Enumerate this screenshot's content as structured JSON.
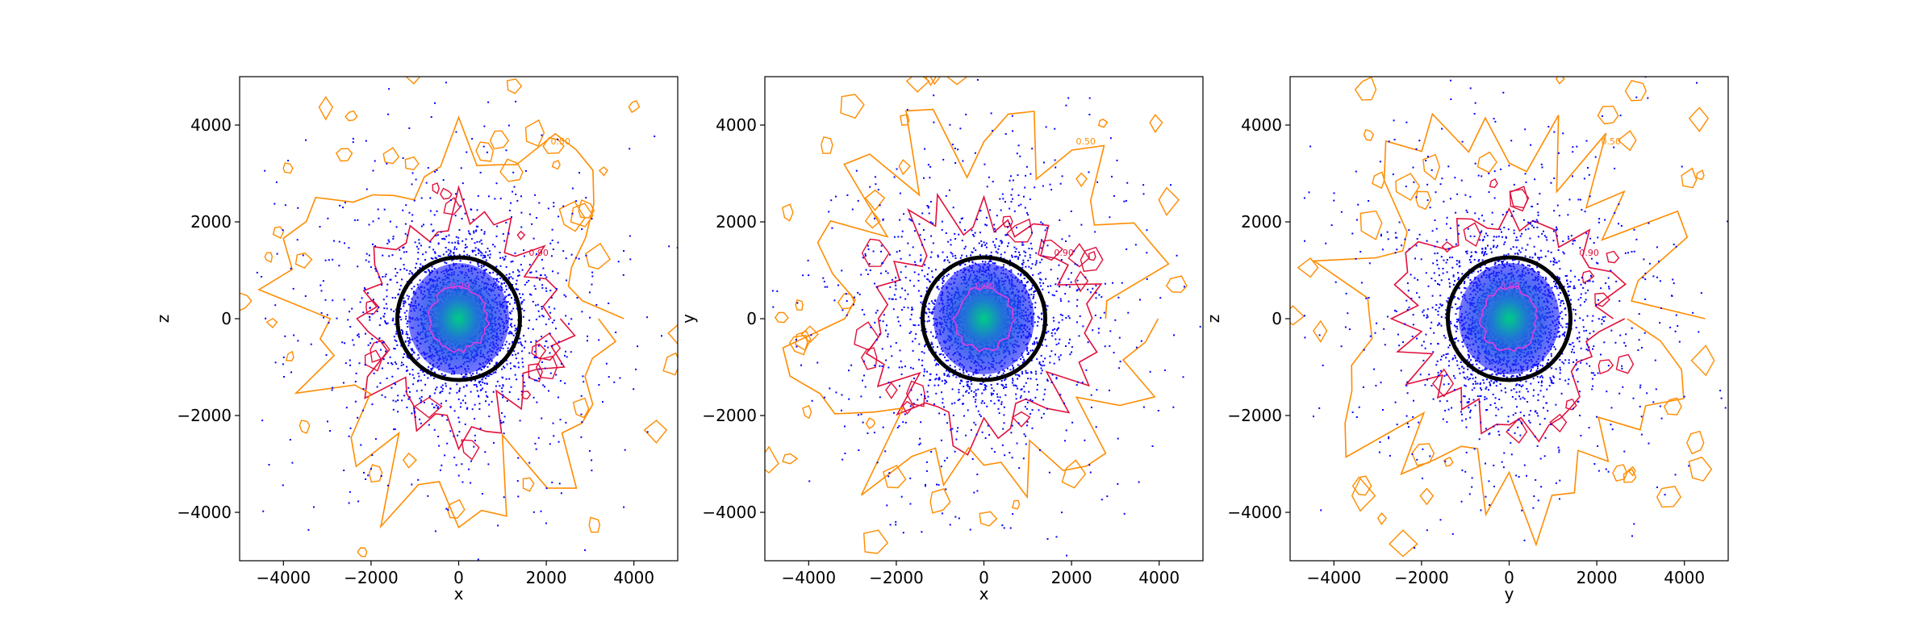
{
  "chart_data": [
    {
      "type": "scatter",
      "panel": "left",
      "xlabel": "x",
      "ylabel": "z",
      "xlim": [
        -5000,
        5000
      ],
      "ylim": [
        -5000,
        5000
      ],
      "xticks": [
        -4000,
        -2000,
        0,
        2000,
        4000
      ],
      "yticks": [
        -4000,
        -2000,
        0,
        2000,
        4000
      ],
      "xtick_labels": [
        "−4000",
        "−2000",
        "0",
        "2000",
        "4000"
      ],
      "ytick_labels": [
        "−4000",
        "−2000",
        "0",
        "2000",
        "4000"
      ],
      "grid": false,
      "circle": {
        "center": [
          0,
          0
        ],
        "radius": 1400,
        "color": "#000000"
      },
      "point_color": "#0000ff",
      "core_colors": [
        "#00cc88",
        "#1f77d4"
      ],
      "contour_levels": [
        {
          "radius": 650,
          "color": "#e040e0"
        },
        {
          "radius": 2200,
          "color": "#e0103c"
        },
        {
          "radius": 3600,
          "color": "#ff8c00"
        }
      ],
      "contour_labels": [
        "0.99",
        "0.90",
        "0.50"
      ],
      "seed": 11
    },
    {
      "type": "scatter",
      "panel": "middle",
      "xlabel": "x",
      "ylabel": "y",
      "xlim": [
        -5000,
        5000
      ],
      "ylim": [
        -5000,
        5000
      ],
      "xticks": [
        -4000,
        -2000,
        0,
        2000,
        4000
      ],
      "yticks": [
        -4000,
        -2000,
        0,
        2000,
        4000
      ],
      "xtick_labels": [
        "−4000",
        "−2000",
        "0",
        "2000",
        "4000"
      ],
      "ytick_labels": [
        "−4000",
        "−2000",
        "0",
        "2000",
        "4000"
      ],
      "grid": false,
      "circle": {
        "center": [
          0,
          0
        ],
        "radius": 1400,
        "color": "#000000"
      },
      "point_color": "#0000ff",
      "core_colors": [
        "#00cc88",
        "#1f77d4"
      ],
      "contour_levels": [
        {
          "radius": 650,
          "color": "#e040e0"
        },
        {
          "radius": 2300,
          "color": "#e0103c"
        },
        {
          "radius": 3700,
          "color": "#ff8c00"
        }
      ],
      "contour_labels": [
        "0.99",
        "0.90",
        "0.50"
      ],
      "seed": 23
    },
    {
      "type": "scatter",
      "panel": "right",
      "xlabel": "y",
      "ylabel": "z",
      "xlim": [
        -5000,
        5000
      ],
      "ylim": [
        -5000,
        5000
      ],
      "xticks": [
        -4000,
        -2000,
        0,
        2000,
        4000
      ],
      "yticks": [
        -4000,
        -2000,
        0,
        2000,
        4000
      ],
      "xtick_labels": [
        "−4000",
        "−2000",
        "0",
        "2000",
        "4000"
      ],
      "ytick_labels": [
        "−4000",
        "−2000",
        "0",
        "2000",
        "4000"
      ],
      "grid": false,
      "circle": {
        "center": [
          0,
          0
        ],
        "radius": 1400,
        "color": "#000000"
      },
      "point_color": "#0000ff",
      "core_colors": [
        "#00cc88",
        "#1f77d4"
      ],
      "contour_levels": [
        {
          "radius": 650,
          "color": "#e040e0"
        },
        {
          "radius": 2250,
          "color": "#e0103c"
        },
        {
          "radius": 3650,
          "color": "#ff8c00"
        }
      ],
      "contour_labels": [
        "0.99",
        "0.90",
        "0.50"
      ],
      "seed": 37
    }
  ]
}
